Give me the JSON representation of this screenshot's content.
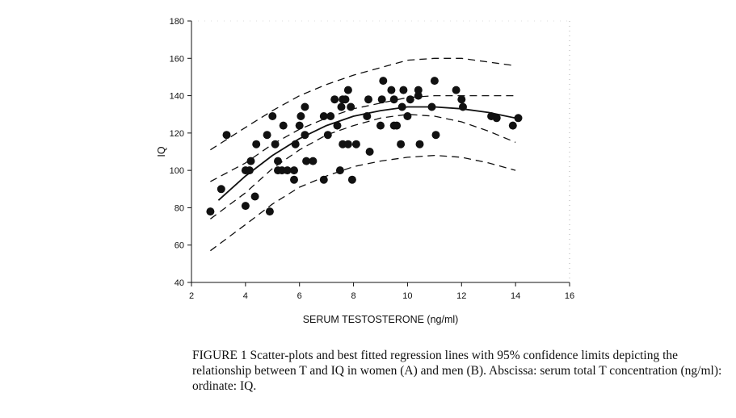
{
  "chart_data": {
    "type": "scatter",
    "xlabel": "SERUM TESTOSTERONE (ng/ml)",
    "ylabel": "IQ",
    "xlim": [
      2,
      16
    ],
    "ylim": [
      40,
      180
    ],
    "xticks": [
      2,
      4,
      6,
      8,
      10,
      12,
      14,
      16
    ],
    "yticks": [
      40,
      60,
      80,
      100,
      120,
      140,
      160,
      180
    ],
    "grid": false,
    "points": [
      [
        2.7,
        78
      ],
      [
        3.1,
        90
      ],
      [
        3.3,
        119
      ],
      [
        4.0,
        81
      ],
      [
        4.0,
        100
      ],
      [
        4.15,
        100
      ],
      [
        4.2,
        105
      ],
      [
        4.35,
        86
      ],
      [
        4.4,
        114
      ],
      [
        4.8,
        119
      ],
      [
        4.9,
        78
      ],
      [
        5.0,
        129
      ],
      [
        5.1,
        114
      ],
      [
        5.2,
        105
      ],
      [
        5.2,
        100
      ],
      [
        5.35,
        100
      ],
      [
        5.4,
        124
      ],
      [
        5.55,
        100
      ],
      [
        5.8,
        95
      ],
      [
        5.8,
        100
      ],
      [
        5.85,
        114
      ],
      [
        6.0,
        124
      ],
      [
        6.05,
        129
      ],
      [
        6.2,
        119
      ],
      [
        6.2,
        134
      ],
      [
        6.25,
        105
      ],
      [
        6.5,
        105
      ],
      [
        6.9,
        95
      ],
      [
        6.9,
        129
      ],
      [
        7.05,
        119
      ],
      [
        7.15,
        129
      ],
      [
        7.3,
        138
      ],
      [
        7.4,
        124
      ],
      [
        7.5,
        100
      ],
      [
        7.55,
        134
      ],
      [
        7.6,
        114
      ],
      [
        7.6,
        138
      ],
      [
        7.7,
        138
      ],
      [
        7.8,
        143
      ],
      [
        7.8,
        114
      ],
      [
        7.9,
        134
      ],
      [
        7.95,
        95
      ],
      [
        8.1,
        114
      ],
      [
        8.5,
        129
      ],
      [
        8.55,
        138
      ],
      [
        8.6,
        110
      ],
      [
        9.0,
        124
      ],
      [
        9.05,
        138
      ],
      [
        9.1,
        148
      ],
      [
        9.4,
        143
      ],
      [
        9.5,
        124
      ],
      [
        9.5,
        138
      ],
      [
        9.6,
        124
      ],
      [
        9.75,
        114
      ],
      [
        9.8,
        134
      ],
      [
        9.85,
        143
      ],
      [
        10.0,
        129
      ],
      [
        10.1,
        138
      ],
      [
        10.4,
        143
      ],
      [
        10.4,
        140
      ],
      [
        10.45,
        114
      ],
      [
        10.9,
        134
      ],
      [
        11.0,
        148
      ],
      [
        11.05,
        119
      ],
      [
        11.8,
        143
      ],
      [
        12.0,
        138
      ],
      [
        12.05,
        134
      ],
      [
        13.1,
        129
      ],
      [
        13.3,
        128
      ],
      [
        13.9,
        124
      ],
      [
        14.1,
        128
      ]
    ],
    "lines": [
      {
        "style": "solid",
        "x": [
          3,
          4,
          5,
          6,
          7,
          8,
          9,
          10,
          11,
          12,
          13,
          14
        ],
        "y": [
          84,
          97,
          108,
          117,
          124,
          129,
          132,
          134,
          134,
          133,
          131,
          128
        ]
      },
      {
        "style": "dashed",
        "x": [
          2.7,
          4,
          5,
          6,
          7,
          8,
          9,
          10,
          11,
          12,
          13,
          14
        ],
        "y": [
          94,
          104,
          114,
          122,
          128,
          133,
          136,
          139,
          140,
          140,
          140,
          140
        ]
      },
      {
        "style": "dashed",
        "x": [
          2.7,
          4,
          5,
          6,
          7,
          8,
          9,
          10,
          11,
          12,
          13,
          14
        ],
        "y": [
          74,
          88,
          101,
          111,
          119,
          124,
          128,
          130,
          129,
          126,
          121,
          115
        ]
      },
      {
        "style": "dashed",
        "x": [
          2.7,
          4,
          5,
          6,
          7,
          8,
          9,
          10,
          11,
          12,
          13,
          14
        ],
        "y": [
          111,
          123,
          132,
          140,
          146,
          151,
          155,
          159,
          160,
          160,
          158,
          156
        ]
      },
      {
        "style": "dashed",
        "x": [
          2.7,
          4,
          5,
          6,
          7,
          8,
          9,
          10,
          11,
          12,
          13,
          14
        ],
        "y": [
          57,
          71,
          82,
          91,
          97,
          102,
          105,
          107,
          108,
          107,
          104,
          100
        ]
      }
    ]
  },
  "caption": {
    "text": "FIGURE 1   Scatter-plots and best fitted regression lines with 95% confidence limits depicting the relationship between T and IQ in women (A) and men (B). Abscissa: serum total T concentration (ng/ml): ordinate: IQ."
  }
}
